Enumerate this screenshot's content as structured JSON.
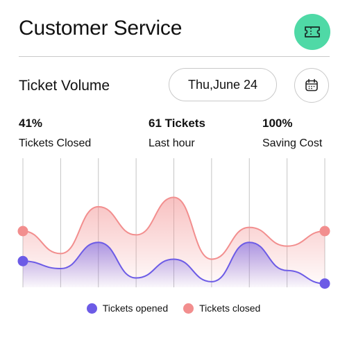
{
  "header": {
    "title": "Customer Service",
    "ticket_icon": "ticket-icon",
    "accent": "#4fd9a6"
  },
  "volume": {
    "title": "Ticket Volume",
    "date": "Thu,June 24",
    "calendar_icon": "calendar-icon"
  },
  "stats": [
    {
      "value": "41%",
      "label": "Tickets Closed"
    },
    {
      "value": "61 Tickets",
      "label": "Last hour"
    },
    {
      "value": "100%",
      "label": "Saving Cost"
    }
  ],
  "chart_data": {
    "type": "area",
    "smooth": true,
    "grid": "vertical",
    "y_axis_labels": false,
    "series": [
      {
        "name": "Tickets closed",
        "color": "#f28e8e",
        "values": [
          30,
          18,
          43,
          28,
          48,
          15,
          32,
          22,
          30
        ]
      },
      {
        "name": "Tickets opened",
        "color": "#6c5be6",
        "values": [
          14,
          10,
          24,
          5,
          15,
          3,
          24,
          9,
          2
        ]
      }
    ]
  },
  "legend": {
    "opened": "Tickets opened",
    "closed": "Tickets closed"
  }
}
